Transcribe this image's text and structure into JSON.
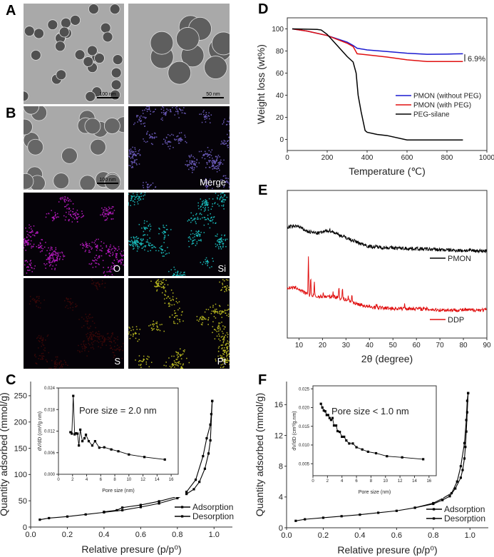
{
  "panels": {
    "A": "A",
    "B": "B",
    "C": "C",
    "D": "D",
    "E": "E",
    "F": "F"
  },
  "images": {
    "a_left": {
      "scale": "100 nm"
    },
    "a_right": {
      "scale": "50 nm"
    },
    "b_tem": {
      "scale": "100 nm"
    },
    "b_merge": {
      "label": "Merge"
    },
    "b_o": {
      "label": "O"
    },
    "b_si": {
      "label": "Si"
    },
    "b_s": {
      "label": "S"
    },
    "b_pt": {
      "label": "Pt"
    }
  },
  "colors": {
    "blue": "#1a1ad0",
    "red": "#e01010",
    "black": "#000000",
    "o_map": "#b01ab8",
    "si_map": "#19b5b5",
    "s_map": "#3a0808",
    "pt_map": "#b8b820",
    "merge_map": "#6a5ab8"
  },
  "chart_data": [
    {
      "id": "D",
      "type": "line",
      "xlabel": "Temperature (℃)",
      "ylabel": "Weight loss (wt%)",
      "xlim": [
        0,
        1000
      ],
      "ylim": [
        -10,
        110
      ],
      "xticks": [
        "0",
        "200",
        "400",
        "600",
        "800",
        "1000"
      ],
      "yticks": [
        "0",
        "20",
        "40",
        "60",
        "80",
        "100"
      ],
      "legend_position": "center-right",
      "annotation": "6.9%",
      "series": [
        {
          "name": "PMON (without PEG)",
          "color": "#1a1ad0",
          "points": [
            [
              25,
              100
            ],
            [
              100,
              98
            ],
            [
              200,
              94
            ],
            [
              300,
              88
            ],
            [
              330,
              85
            ],
            [
              350,
              82.5
            ],
            [
              400,
              81
            ],
            [
              500,
              79.5
            ],
            [
              600,
              78
            ],
            [
              700,
              77
            ],
            [
              800,
              77.2
            ],
            [
              880,
              77.5
            ]
          ]
        },
        {
          "name": "PMON (with PEG)",
          "color": "#e01010",
          "points": [
            [
              25,
              100
            ],
            [
              100,
              98
            ],
            [
              200,
              94
            ],
            [
              300,
              87
            ],
            [
              330,
              84
            ],
            [
              350,
              77.5
            ],
            [
              400,
              76.5
            ],
            [
              500,
              74.5
            ],
            [
              600,
              72
            ],
            [
              700,
              70.5
            ],
            [
              880,
              70.5
            ]
          ]
        },
        {
          "name": "PEG-silane",
          "color": "#000000",
          "points": [
            [
              25,
              100
            ],
            [
              150,
              99.5
            ],
            [
              170,
              99
            ],
            [
              200,
              95
            ],
            [
              250,
              85
            ],
            [
              300,
              75
            ],
            [
              330,
              70
            ],
            [
              345,
              60
            ],
            [
              355,
              40
            ],
            [
              370,
              25
            ],
            [
              390,
              8
            ],
            [
              400,
              6.5
            ],
            [
              450,
              4.5
            ],
            [
              500,
              3.5
            ],
            [
              600,
              -0.5
            ],
            [
              880,
              -0.5
            ]
          ]
        }
      ]
    },
    {
      "id": "E",
      "type": "line",
      "xlabel": "2θ (degree)",
      "ylabel": "",
      "xlim": [
        5,
        90
      ],
      "xticks": [
        "10",
        "20",
        "30",
        "40",
        "50",
        "60",
        "70",
        "80",
        "90"
      ],
      "series": [
        {
          "name": "PMON",
          "color": "#000000",
          "points": [
            [
              5,
              75
            ],
            [
              9,
              76
            ],
            [
              14,
              72
            ],
            [
              18,
              71
            ],
            [
              23,
              73
            ],
            [
              27,
              70
            ],
            [
              33,
              66
            ],
            [
              40,
              62
            ],
            [
              50,
              61
            ],
            [
              60,
              60.5
            ],
            [
              75,
              59.5
            ],
            [
              90,
              59
            ]
          ],
          "peaks": []
        },
        {
          "name": "DDP",
          "color": "#e01010",
          "points": [
            [
              5,
              34
            ],
            [
              9,
              34
            ],
            [
              12,
              31
            ],
            [
              14,
              29
            ],
            [
              17,
              28
            ],
            [
              25,
              28
            ],
            [
              30,
              26
            ],
            [
              35,
              23
            ],
            [
              40,
              21
            ],
            [
              50,
              20
            ],
            [
              60,
              20
            ],
            [
              70,
              19
            ],
            [
              90,
              19
            ]
          ],
          "peaks": [
            [
              14,
              27
            ],
            [
              15,
              13
            ],
            [
              16.5,
              10
            ],
            [
              20.3,
              3
            ],
            [
              24.5,
              3
            ],
            [
              27,
              8
            ],
            [
              28.5,
              7
            ],
            [
              31,
              3
            ],
            [
              32.5,
              5
            ],
            [
              43,
              3
            ],
            [
              55,
              3
            ]
          ]
        }
      ]
    },
    {
      "id": "C",
      "type": "line",
      "xlabel": "Relative presure (p/p⁰)",
      "ylabel": "Quantity adsorbed (mmol/g)",
      "xlim": [
        0,
        1.1
      ],
      "ylim": [
        0,
        277
      ],
      "xticks": [
        "0.0",
        "0.2",
        "0.4",
        "0.6",
        "0.8",
        "1.0"
      ],
      "yticks": [
        "0",
        "50",
        "100",
        "150",
        "200",
        "250"
      ],
      "legend_position": "bottom-right",
      "series": [
        {
          "name": "Adsorption",
          "color": "#000000",
          "points": [
            [
              0.05,
              14
            ],
            [
              0.1,
              17
            ],
            [
              0.2,
              20
            ],
            [
              0.3,
              24
            ],
            [
              0.4,
              28
            ],
            [
              0.5,
              32
            ],
            [
              0.6,
              38
            ],
            [
              0.7,
              45
            ],
            [
              0.8,
              55
            ],
            [
              0.85,
              63
            ],
            [
              0.89,
              72
            ],
            [
              0.92,
              86
            ],
            [
              0.95,
              111
            ],
            [
              0.97,
              140
            ],
            [
              0.98,
              165
            ],
            [
              0.99,
              240
            ]
          ]
        },
        {
          "name": "Desorption",
          "color": "#000000",
          "points": [
            [
              0.99,
              240
            ],
            [
              0.985,
              215
            ],
            [
              0.98,
              195
            ],
            [
              0.96,
              169
            ],
            [
              0.94,
              135
            ],
            [
              0.9,
              90
            ],
            [
              0.85,
              67
            ],
            [
              0.8,
              58
            ],
            [
              0.7,
              49
            ],
            [
              0.6,
              42
            ],
            [
              0.5,
              37
            ],
            [
              0.47,
              32
            ],
            [
              0.4,
              29
            ]
          ]
        }
      ],
      "inset": {
        "type": "line",
        "annotation": "Pore size = 2.0 nm",
        "xlabel": "Pore size (nm)",
        "ylabel": "dV/dD (cm³/g nm)",
        "xlim": [
          0,
          17
        ],
        "ylim": [
          0,
          0.024
        ],
        "xticks": [
          "0",
          "2",
          "4",
          "6",
          "8",
          "10",
          "12",
          "14",
          "16"
        ],
        "yticks": [
          "0.000",
          "0.006",
          "0.012",
          "0.018",
          "0.024"
        ],
        "points": [
          [
            1.7,
            0.0117
          ],
          [
            1.9,
            0.0113
          ],
          [
            2.1,
            0.0218
          ],
          [
            2.3,
            0.0111
          ],
          [
            2.5,
            0.0114
          ],
          [
            2.7,
            0.0113
          ],
          [
            2.9,
            0.008
          ],
          [
            3.1,
            0.0124
          ],
          [
            3.4,
            0.0092
          ],
          [
            3.7,
            0.01
          ],
          [
            3.9,
            0.011
          ],
          [
            4.3,
            0.0092
          ],
          [
            4.8,
            0.008
          ],
          [
            5.2,
            0.0092
          ],
          [
            5.8,
            0.0074
          ],
          [
            6.5,
            0.0075
          ],
          [
            7.5,
            0.0069
          ],
          [
            8.5,
            0.0064
          ],
          [
            10,
            0.0055
          ],
          [
            12.2,
            0.0048
          ],
          [
            15.1,
            0.0041
          ]
        ]
      }
    },
    {
      "id": "F",
      "type": "line",
      "xlabel": "Relative presure (p/p⁰)",
      "ylabel": "Quantity adsorbed (mmol/g)",
      "xlim": [
        0,
        1.1
      ],
      "ylim": [
        0,
        19
      ],
      "xticks": [
        "0.0",
        "0.2",
        "0.4",
        "0.6",
        "0.8",
        "1.0"
      ],
      "yticks": [
        "0",
        "4",
        "8",
        "12",
        "16"
      ],
      "legend_position": "bottom-right",
      "series": [
        {
          "name": "Adsorption",
          "color": "#000000",
          "points": [
            [
              0.05,
              0.9
            ],
            [
              0.1,
              1.1
            ],
            [
              0.2,
              1.3
            ],
            [
              0.3,
              1.5
            ],
            [
              0.4,
              1.7
            ],
            [
              0.5,
              1.95
            ],
            [
              0.6,
              2.2
            ],
            [
              0.7,
              2.6
            ],
            [
              0.8,
              3.1
            ],
            [
              0.85,
              3.6
            ],
            [
              0.89,
              4.1
            ],
            [
              0.92,
              5.1
            ],
            [
              0.95,
              6.5
            ],
            [
              0.96,
              7.5
            ],
            [
              0.97,
              9
            ],
            [
              0.975,
              10.5
            ],
            [
              0.98,
              12.5
            ],
            [
              0.985,
              15
            ],
            [
              0.99,
              17.5
            ]
          ]
        },
        {
          "name": "Desorption",
          "color": "#000000",
          "points": [
            [
              0.99,
              17.5
            ],
            [
              0.985,
              16.5
            ],
            [
              0.98,
              14
            ],
            [
              0.97,
              11
            ],
            [
              0.95,
              8
            ],
            [
              0.93,
              6
            ],
            [
              0.9,
              4.5
            ],
            [
              0.85,
              3.8
            ],
            [
              0.8,
              3.2
            ],
            [
              0.7,
              2.6
            ]
          ]
        }
      ],
      "inset": {
        "type": "line",
        "annotation": "Pore size < 1.0 nm",
        "xlabel": "Pore size (nm)",
        "ylabel": "dV/dD (cm³/g.nm)",
        "xlim": [
          0,
          17
        ],
        "ylim": [
          0.0018,
          0.0258
        ],
        "xticks": [
          "0",
          "2",
          "4",
          "6",
          "8",
          "10",
          "12",
          "14",
          "16"
        ],
        "yticks": [
          "0.005",
          "0.010",
          "0.015",
          "0.020",
          "0.025"
        ],
        "points": [
          [
            1.1,
            0.021
          ],
          [
            1.3,
            0.02
          ],
          [
            1.5,
            0.0192
          ],
          [
            1.7,
            0.019
          ],
          [
            1.9,
            0.018
          ],
          [
            2.1,
            0.018
          ],
          [
            2.3,
            0.0172
          ],
          [
            2.5,
            0.0167
          ],
          [
            2.7,
            0.0172
          ],
          [
            2.9,
            0.0152
          ],
          [
            3.2,
            0.0152
          ],
          [
            3.4,
            0.0137
          ],
          [
            3.7,
            0.0135
          ],
          [
            4,
            0.0122
          ],
          [
            4.3,
            0.0122
          ],
          [
            4.6,
            0.0112
          ],
          [
            5,
            0.0104
          ],
          [
            5.5,
            0.0104
          ],
          [
            6,
            0.0094
          ],
          [
            6.8,
            0.0088
          ],
          [
            7.6,
            0.0082
          ],
          [
            8.7,
            0.0078
          ],
          [
            10.2,
            0.007
          ],
          [
            12.3,
            0.0067
          ],
          [
            15.2,
            0.0062
          ]
        ]
      }
    }
  ]
}
